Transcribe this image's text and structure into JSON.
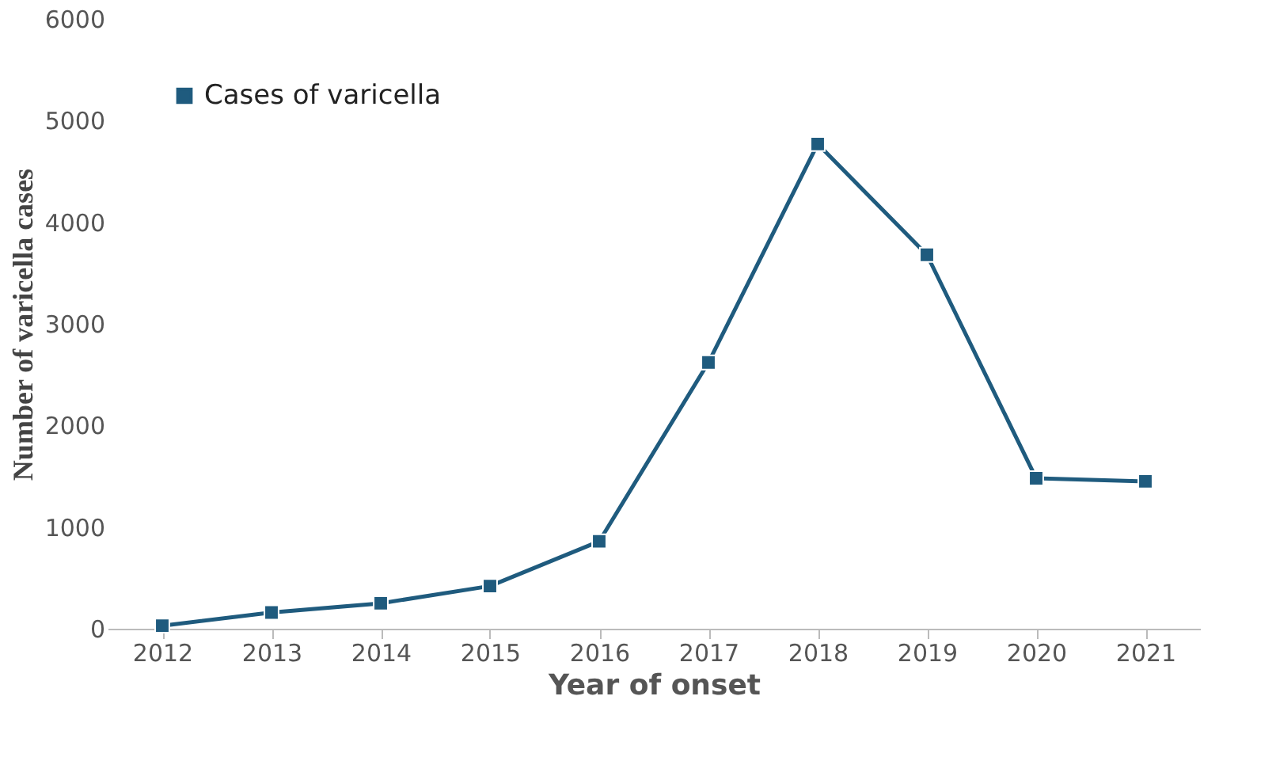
{
  "chart_data": {
    "type": "line",
    "xlabel": "Year of onset",
    "ylabel": "Number of varicella cases",
    "categories": [
      "2012",
      "2013",
      "2014",
      "2015",
      "2016",
      "2017",
      "2018",
      "2019",
      "2020",
      "2021"
    ],
    "series": [
      {
        "name": "Cases of varicella",
        "color": "#1f5b7e",
        "values": [
          30,
          160,
          250,
          420,
          860,
          2620,
          4770,
          3680,
          1480,
          1450
        ]
      }
    ],
    "ylim": [
      0,
      6000
    ],
    "yticks": [
      0,
      1000,
      2000,
      3000,
      4000,
      5000,
      6000
    ],
    "grid": false,
    "legend": "top left",
    "marker": "square",
    "line_style": "solid"
  }
}
